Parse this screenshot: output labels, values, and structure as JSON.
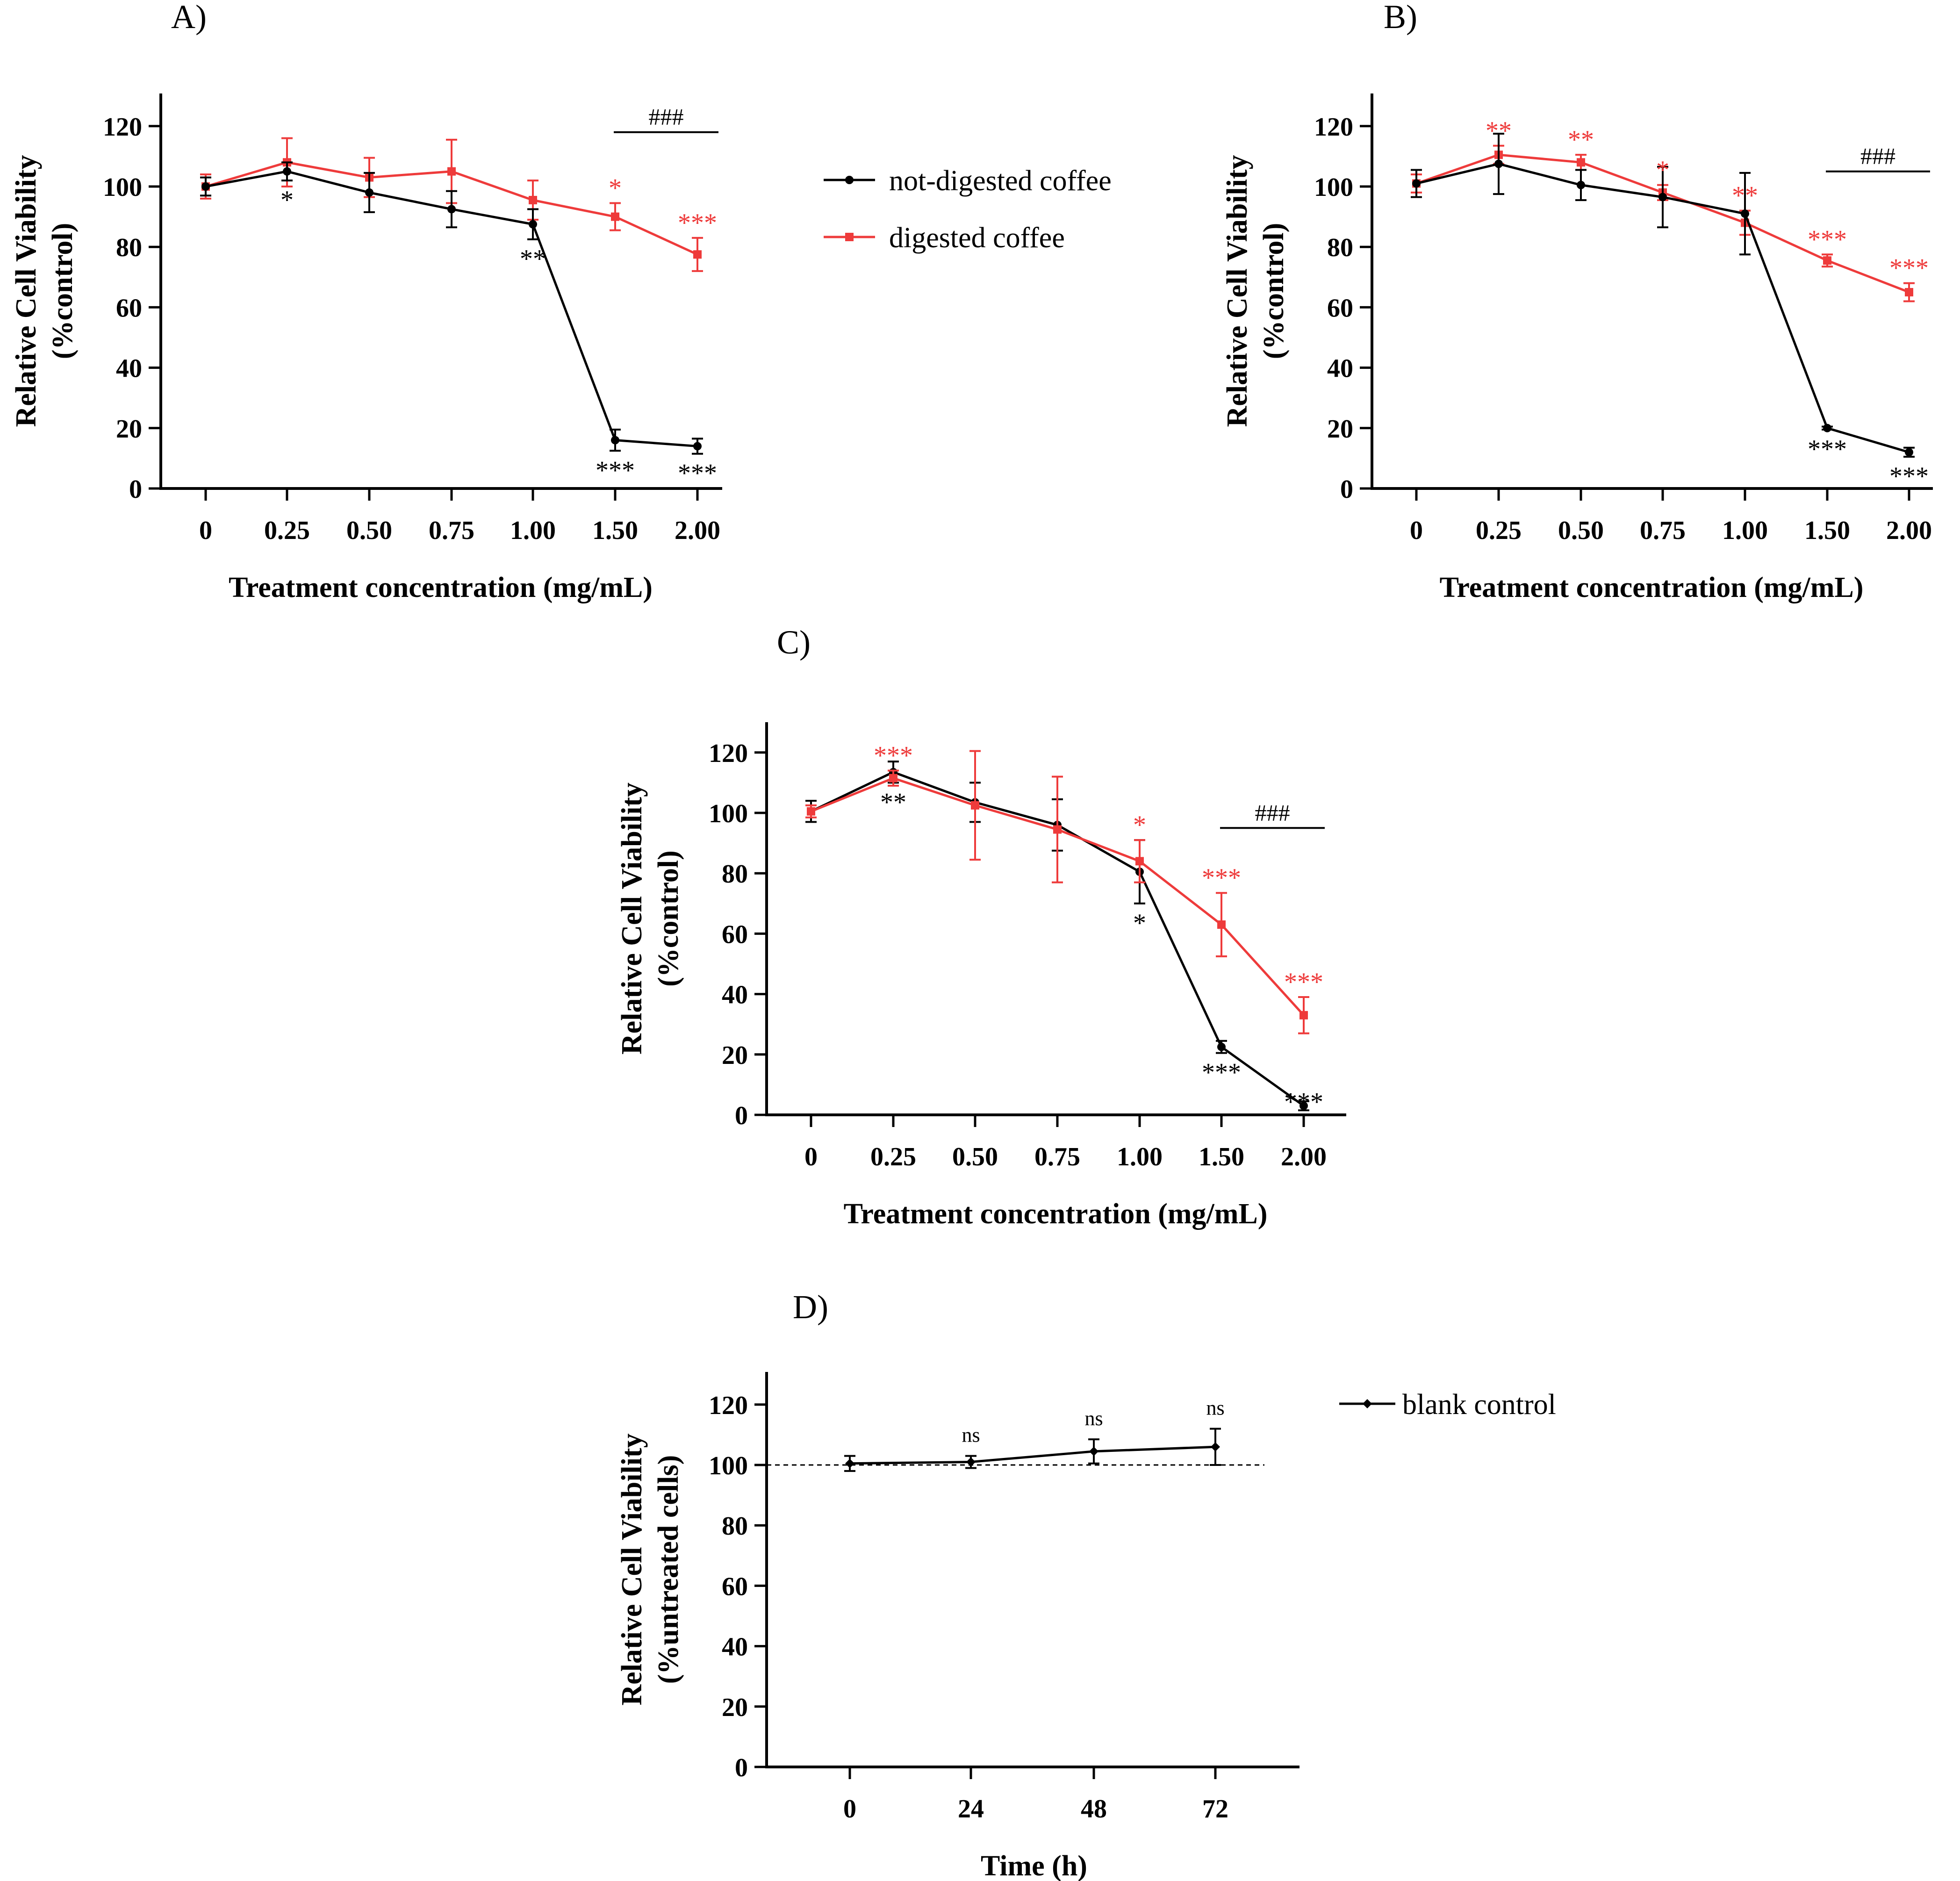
{
  "colors": {
    "not_digested": "#000000",
    "digested": "#ee3b3b",
    "axis": "#000000"
  },
  "legend_main": {
    "position": "right of panel A",
    "entries": [
      {
        "label": "not-digested coffee",
        "color": "#000000",
        "marker": "circle"
      },
      {
        "label": "digested coffee",
        "color": "#ee3b3b",
        "marker": "square"
      }
    ]
  },
  "chart_data": [
    {
      "id": "A",
      "panel_label": "A)",
      "type": "line",
      "xlabel": "Treatment concentration (mg/mL)",
      "ylabel": "Relative Cell Viability",
      "ylabel2": "(%control)",
      "categories": [
        "0",
        "0.25",
        "0.50",
        "0.75",
        "1.00",
        "1.50",
        "2.00"
      ],
      "ylim": [
        0,
        130
      ],
      "yticks": [
        0,
        20,
        40,
        60,
        80,
        100,
        120
      ],
      "grid": false,
      "series": [
        {
          "name": "not-digested coffee",
          "color": "#000000",
          "marker": "circle",
          "values": [
            100,
            105,
            98,
            92.5,
            87.5,
            16,
            14
          ],
          "errors": [
            3,
            3,
            6.5,
            6,
            5,
            3.5,
            2.5
          ],
          "stars": [
            "",
            "*",
            "",
            "",
            "**",
            "***",
            "***"
          ]
        },
        {
          "name": "digested coffee",
          "color": "#ee3b3b",
          "marker": "square",
          "values": [
            100,
            108,
            103,
            105,
            95.5,
            90,
            77.5
          ],
          "errors": [
            4,
            8,
            6.5,
            10.5,
            6.5,
            4.5,
            5.5
          ],
          "stars": [
            "",
            "",
            "",
            "",
            "",
            "*",
            "***"
          ]
        }
      ],
      "bracket": {
        "label": "###",
        "from": 5,
        "to": 6,
        "y": 118
      }
    },
    {
      "id": "B",
      "panel_label": "B)",
      "type": "line",
      "xlabel": "Treatment concentration (mg/mL)",
      "ylabel": "Relative Cell Viability",
      "ylabel2": "(%control)",
      "categories": [
        "0",
        "0.25",
        "0.50",
        "0.75",
        "1.00",
        "1.50",
        "2.00"
      ],
      "ylim": [
        0,
        130
      ],
      "yticks": [
        0,
        20,
        40,
        60,
        80,
        100,
        120
      ],
      "grid": false,
      "series": [
        {
          "name": "not-digested coffee",
          "color": "#000000",
          "marker": "circle",
          "values": [
            101,
            107.5,
            100.5,
            96.5,
            91,
            20,
            12
          ],
          "errors": [
            4.5,
            10,
            5,
            10,
            13.5,
            0.5,
            1.5
          ],
          "stars": [
            "",
            "",
            "",
            "",
            "",
            "***",
            "***"
          ]
        },
        {
          "name": "digested coffee",
          "color": "#ee3b3b",
          "marker": "square",
          "values": [
            101,
            110.5,
            108,
            98,
            88,
            75.5,
            65
          ],
          "errors": [
            3,
            3,
            2.5,
            2.5,
            4,
            2,
            3
          ],
          "stars": [
            "",
            "**",
            "**",
            "*",
            "**",
            "***",
            "***"
          ]
        }
      ],
      "bracket": {
        "label": "###",
        "from": 5,
        "to": 6,
        "y": 105
      }
    },
    {
      "id": "C",
      "panel_label": "C)",
      "type": "line",
      "xlabel": "Treatment concentration (mg/mL)",
      "ylabel": "Relative Cell Viability",
      "ylabel2": "(%control)",
      "categories": [
        "0",
        "0.25",
        "0.50",
        "0.75",
        "1.00",
        "1.50",
        "2.00"
      ],
      "ylim": [
        0,
        130
      ],
      "yticks": [
        0,
        20,
        40,
        60,
        80,
        100,
        120
      ],
      "grid": false,
      "series": [
        {
          "name": "not-digested coffee",
          "color": "#000000",
          "marker": "circle",
          "values": [
            100.5,
            113.5,
            103.5,
            96,
            80.5,
            22.5,
            3
          ],
          "errors": [
            3.5,
            3.5,
            6.5,
            8.5,
            10.5,
            2,
            1.5
          ],
          "stars": [
            "",
            "**",
            "",
            "",
            "*",
            "***",
            "***"
          ]
        },
        {
          "name": "digested coffee",
          "color": "#ee3b3b",
          "marker": "square",
          "values": [
            100.5,
            111.5,
            102.5,
            94.5,
            84,
            63,
            33
          ],
          "errors": [
            2,
            2.5,
            18,
            17.5,
            7,
            10.5,
            6
          ],
          "stars": [
            "",
            "***",
            "",
            "",
            "*",
            "***",
            "***"
          ]
        }
      ],
      "bracket": {
        "label": "###",
        "from": 5,
        "to": 6,
        "y": 95
      }
    },
    {
      "id": "D",
      "panel_label": "D)",
      "type": "line",
      "xlabel": "Time (h)",
      "ylabel": "Relative Cell Viability",
      "ylabel2": "(%untreated cells)",
      "categories": [
        "0",
        "24",
        "48",
        "72"
      ],
      "ylim": [
        0,
        130
      ],
      "yticks": [
        0,
        20,
        40,
        60,
        80,
        100,
        120
      ],
      "grid": false,
      "reference_line": 100,
      "series": [
        {
          "name": "blank control",
          "color": "#000000",
          "marker": "diamond",
          "values": [
            100.5,
            101,
            104.5,
            106
          ],
          "errors": [
            2.5,
            2,
            4,
            6
          ],
          "stars": [
            "",
            "ns",
            "ns",
            "ns"
          ]
        }
      ],
      "legend": {
        "position": "right",
        "entries": [
          {
            "label": "blank control",
            "color": "#000000",
            "marker": "diamond"
          }
        ]
      }
    }
  ]
}
